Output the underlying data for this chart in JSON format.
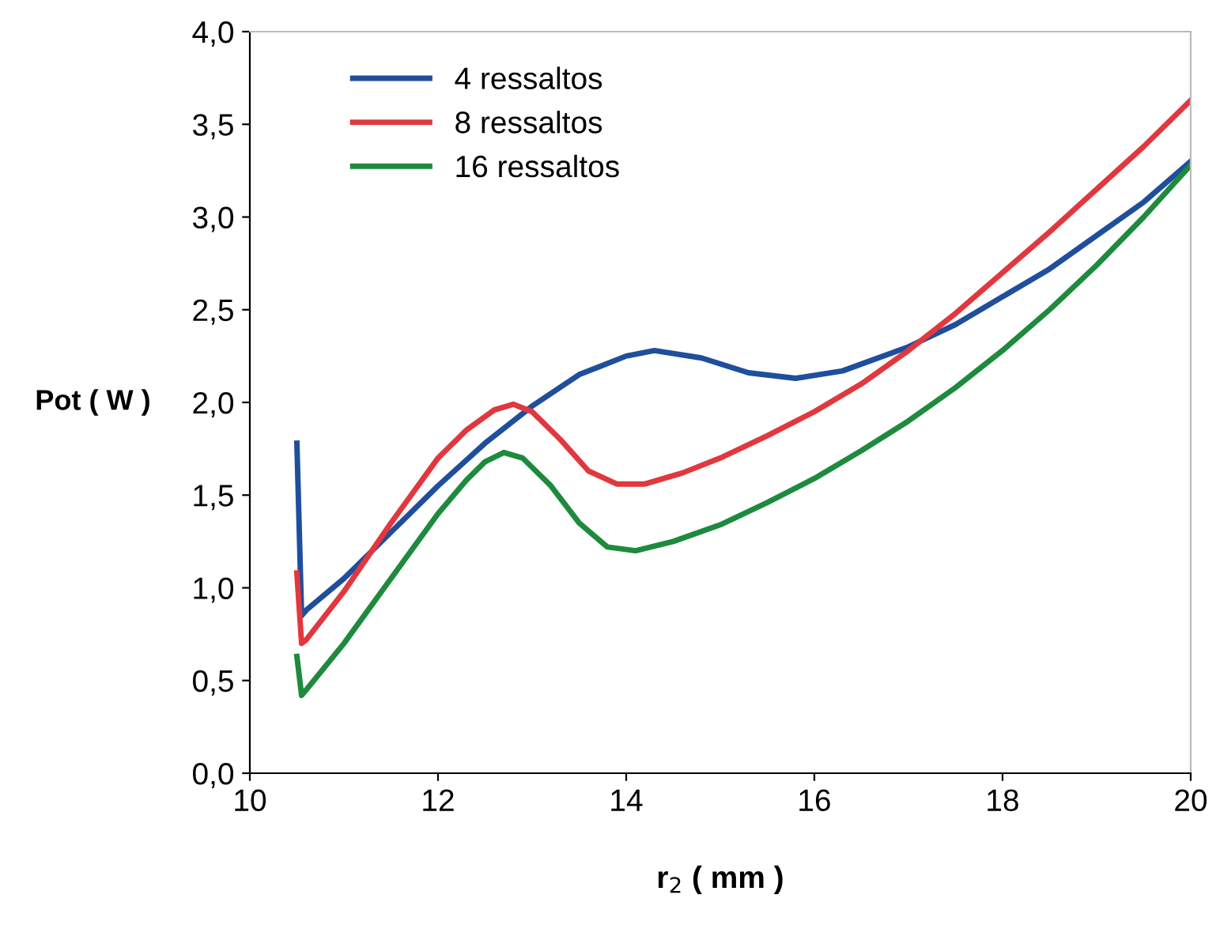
{
  "chart_data": {
    "type": "line",
    "xlabel": "r$_{2}$ ( mm )",
    "ylabel": "Pot ( W )",
    "xlim": [
      10,
      20
    ],
    "xticks": [
      10,
      12,
      14,
      16,
      18,
      20
    ],
    "ylim": [
      0,
      4
    ],
    "yticks": [
      {
        "value": 0,
        "label": "0,0"
      },
      {
        "value": 0.5,
        "label": "0,5"
      },
      {
        "value": 1,
        "label": "1,0"
      },
      {
        "value": 1.5,
        "label": "1,5"
      },
      {
        "value": 2,
        "label": "2,0"
      },
      {
        "value": 2.5,
        "label": "2,5"
      },
      {
        "value": 3,
        "label": "3,0"
      },
      {
        "value": 3.5,
        "label": "3,5"
      },
      {
        "value": 4,
        "label": "4,0"
      }
    ],
    "grid": false,
    "legend": "top left",
    "marker": "none",
    "line_style": "solid",
    "series": [
      {
        "name": "4 ressaltos",
        "color": "#1f4e9c",
        "x": [
          10.5,
          10.55,
          10.6,
          11,
          11.5,
          12,
          12.5,
          13,
          13.5,
          14,
          14.3,
          14.8,
          15.3,
          15.8,
          16.3,
          17,
          17.5,
          18,
          18.5,
          19,
          19.5,
          20
        ],
        "values": [
          1.78,
          0.85,
          0.88,
          1.05,
          1.3,
          1.55,
          1.78,
          1.98,
          2.15,
          2.25,
          2.28,
          2.24,
          2.16,
          2.13,
          2.17,
          2.3,
          2.42,
          2.57,
          2.72,
          2.9,
          3.08,
          3.3
        ]
      },
      {
        "name": "8 ressaltos",
        "color": "#e0383e",
        "x": [
          10.5,
          10.55,
          10.6,
          11,
          11.5,
          12,
          12.3,
          12.6,
          12.8,
          13,
          13.3,
          13.6,
          13.9,
          14.2,
          14.6,
          15,
          15.5,
          16,
          16.5,
          17,
          17.5,
          18,
          18.5,
          19,
          19.5,
          20
        ],
        "values": [
          1.08,
          0.7,
          0.72,
          0.98,
          1.35,
          1.7,
          1.85,
          1.96,
          1.99,
          1.95,
          1.8,
          1.63,
          1.56,
          1.56,
          1.62,
          1.7,
          1.82,
          1.95,
          2.1,
          2.28,
          2.48,
          2.7,
          2.92,
          3.15,
          3.38,
          3.63
        ]
      },
      {
        "name": "16 ressaltos",
        "color": "#1e8a3e",
        "x": [
          10.5,
          10.55,
          10.6,
          11,
          11.5,
          12,
          12.3,
          12.5,
          12.7,
          12.9,
          13.2,
          13.5,
          13.8,
          14.1,
          14.5,
          15,
          15.5,
          16,
          16.5,
          17,
          17.5,
          18,
          18.5,
          19,
          19.5,
          20
        ],
        "values": [
          0.63,
          0.42,
          0.45,
          0.7,
          1.05,
          1.4,
          1.58,
          1.68,
          1.73,
          1.7,
          1.55,
          1.35,
          1.22,
          1.2,
          1.25,
          1.34,
          1.46,
          1.59,
          1.74,
          1.9,
          2.08,
          2.28,
          2.5,
          2.74,
          3.0,
          3.28
        ]
      }
    ]
  }
}
